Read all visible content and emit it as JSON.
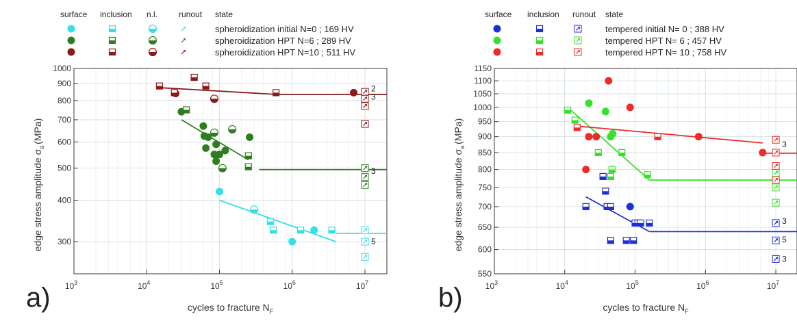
{
  "chart_data": [
    {
      "type": "scatter",
      "panel_label": "a)",
      "xlabel": "cycles to fracture N",
      "xlabel_sub": "F",
      "ylabel": "edge stress amplitude σ",
      "ylabel_sub": "a",
      "ylabel_unit": "(MPa)",
      "xscale": "log",
      "yscale": "log",
      "xlim": [
        1000,
        20000000
      ],
      "ylim": [
        240,
        1000
      ],
      "grid": true,
      "x_ticks": [
        {
          "value": 1000,
          "base": "10",
          "exp": "3"
        },
        {
          "value": 10000,
          "base": "10",
          "exp": "4"
        },
        {
          "value": 100000,
          "base": "10",
          "exp": "5"
        },
        {
          "value": 1000000,
          "base": "10",
          "exp": "6"
        },
        {
          "value": 10000000,
          "base": "10",
          "exp": "7"
        }
      ],
      "y_ticks": [
        {
          "value": 300,
          "label": "300"
        },
        {
          "value": 400,
          "label": "400"
        },
        {
          "value": 500,
          "label": "500"
        },
        {
          "value": 600,
          "label": "600"
        },
        {
          "value": 700,
          "label": "700"
        },
        {
          "value": 800,
          "label": "800"
        },
        {
          "value": 900,
          "label": "900"
        },
        {
          "value": 1000,
          "label": "1000"
        }
      ],
      "legend": {
        "headers": [
          "surface",
          "inclusion",
          "n.l.",
          "runout",
          "state"
        ],
        "entries": [
          {
            "color": "#33e0e6",
            "text": "spheroidization initial N=0     ; 169 HV",
            "nl": true
          },
          {
            "color": "#2e7d1f",
            "text": "spheroidization HPT  N=6      ; 289 HV",
            "nl": true
          },
          {
            "color": "#8b1a1a",
            "text": "spheroidization HPT  N=10 ; 511 HV",
            "nl": true
          }
        ]
      },
      "series": [
        {
          "color": "#33e0e6",
          "surface": [
            [
              100000,
              425
            ],
            [
              1000000,
              300
            ],
            [
              2000000,
              325
            ]
          ],
          "inclusion": [
            [
              500000,
              345
            ],
            [
              550000,
              325
            ],
            [
              1300000,
              325
            ],
            [
              3500000,
              325
            ]
          ],
          "nl": [
            [
              300000,
              375
            ]
          ],
          "runout": [
            [
              10000000,
              325
            ],
            [
              10000000,
              300
            ],
            [
              10000000,
              270
            ]
          ],
          "fit": [
            [
              100000,
              400
            ],
            [
              4000000,
              300
            ]
          ],
          "fit_runout": [
            [
              4000000,
              318
            ],
            [
              20000000,
              318
            ]
          ]
        },
        {
          "color": "#2e7d1f",
          "surface": [
            [
              30000,
              740
            ],
            [
              60000,
              670
            ],
            [
              62000,
              625
            ],
            [
              70000,
              620
            ],
            [
              65000,
              575
            ],
            [
              90000,
              590
            ],
            [
              85000,
              550
            ],
            [
              100000,
              550
            ],
            [
              120000,
              565
            ],
            [
              90000,
              525
            ],
            [
              260000,
              620
            ]
          ],
          "inclusion": [
            [
              35000,
              750
            ],
            [
              250000,
              545
            ],
            [
              250000,
              505
            ]
          ],
          "nl": [
            [
              85000,
              640
            ],
            [
              150000,
              655
            ],
            [
              110000,
              500
            ]
          ],
          "runout": [
            [
              10000000,
              500
            ],
            [
              10000000,
              470
            ],
            [
              10000000,
              445
            ]
          ],
          "fit": [
            [
              30000,
              700
            ],
            [
              250000,
              530
            ]
          ],
          "fit_runout": [
            [
              350000,
              495
            ],
            [
              20000000,
              495
            ]
          ]
        },
        {
          "color": "#8b1a1a",
          "surface": [
            [
              25000,
              840
            ],
            [
              7000000,
              845
            ]
          ],
          "inclusion": [
            [
              15000,
              885
            ],
            [
              24000,
              845
            ],
            [
              45000,
              940
            ],
            [
              65000,
              885
            ],
            [
              600000,
              845
            ]
          ],
          "nl": [
            [
              85000,
              810
            ]
          ],
          "runout": [
            [
              10000000,
              850
            ],
            [
              10000000,
              810
            ],
            [
              10000000,
              770
            ],
            [
              10000000,
              680
            ]
          ],
          "fit": [
            [
              15000,
              875
            ],
            [
              600000,
              835
            ]
          ],
          "fit_runout": [
            [
              600000,
              835
            ],
            [
              20000000,
              835
            ]
          ]
        }
      ],
      "count_labels": [
        {
          "x": 10000000,
          "y": 870,
          "label": "2"
        },
        {
          "x": 10000000,
          "y": 820,
          "label": "3"
        },
        {
          "x": 10000000,
          "y": 490,
          "label": "3"
        },
        {
          "x": 10000000,
          "y": 300,
          "label": "5"
        }
      ]
    },
    {
      "type": "scatter",
      "panel_label": "b)",
      "xlabel": "cycles to fracture N",
      "xlabel_sub": "F",
      "ylabel": "edge stress amplitude σ",
      "ylabel_sub": "a",
      "ylabel_unit": "(MPa)",
      "xscale": "log",
      "yscale": "log",
      "xlim": [
        1000,
        20000000
      ],
      "ylim": [
        550,
        1150
      ],
      "grid": true,
      "x_ticks": [
        {
          "value": 1000,
          "base": "10",
          "exp": "3"
        },
        {
          "value": 10000,
          "base": "10",
          "exp": "4"
        },
        {
          "value": 100000,
          "base": "10",
          "exp": "5"
        },
        {
          "value": 1000000,
          "base": "10",
          "exp": "6"
        },
        {
          "value": 10000000,
          "base": "10",
          "exp": "7"
        }
      ],
      "y_ticks": [
        {
          "value": 550,
          "label": "550"
        },
        {
          "value": 600,
          "label": "600"
        },
        {
          "value": 650,
          "label": "650"
        },
        {
          "value": 700,
          "label": "700"
        },
        {
          "value": 750,
          "label": "750"
        },
        {
          "value": 800,
          "label": "800"
        },
        {
          "value": 850,
          "label": "850"
        },
        {
          "value": 900,
          "label": "900"
        },
        {
          "value": 950,
          "label": "950"
        },
        {
          "value": 1000,
          "label": "1000"
        },
        {
          "value": 1050,
          "label": "1050"
        },
        {
          "value": 1100,
          "label": "1100"
        },
        {
          "value": 1150,
          "label": "1150"
        }
      ],
      "legend": {
        "headers": [
          "surface",
          "inclusion",
          "runout",
          "state"
        ],
        "entries": [
          {
            "color": "#1f2fd6",
            "text": "tempered initial N= 0    ; 388 HV",
            "nl": false
          },
          {
            "color": "#37e02a",
            "text": "tempered HPT  N= 6    ; 457 HV",
            "nl": false
          },
          {
            "color": "#f02a2a",
            "text": "tempered HPT  N= 10 ; 758 HV",
            "nl": false
          }
        ]
      },
      "series": [
        {
          "color": "#1f2fd6",
          "surface": [
            [
              85000,
              700
            ]
          ],
          "inclusion": [
            [
              20000,
              700
            ],
            [
              35000,
              780
            ],
            [
              38000,
              740
            ],
            [
              40000,
              700
            ],
            [
              45000,
              700
            ],
            [
              45000,
              620
            ],
            [
              75000,
              620
            ],
            [
              95000,
              620
            ],
            [
              100000,
              660
            ],
            [
              110000,
              660
            ],
            [
              120000,
              660
            ],
            [
              160000,
              660
            ]
          ],
          "nl": [],
          "runout": [
            [
              10000000,
              660
            ],
            [
              10000000,
              620
            ],
            [
              10000000,
              580
            ]
          ],
          "fit": [
            [
              20000,
              725
            ],
            [
              160000,
              640
            ]
          ],
          "fit_runout": [
            [
              160000,
              640
            ],
            [
              20000000,
              640
            ]
          ]
        },
        {
          "color": "#37e02a",
          "surface": [
            [
              22000,
              1015
            ],
            [
              38000,
              985
            ],
            [
              45000,
              900
            ],
            [
              48000,
              910
            ]
          ],
          "inclusion": [
            [
              11000,
              990
            ],
            [
              14000,
              955
            ],
            [
              30000,
              850
            ],
            [
              45000,
              780
            ],
            [
              47000,
              800
            ],
            [
              65000,
              850
            ],
            [
              150000,
              785
            ]
          ],
          "nl": [],
          "runout": [
            [
              10000000,
              790
            ],
            [
              10000000,
              770
            ],
            [
              10000000,
              750
            ],
            [
              10000000,
              710
            ]
          ],
          "fit": [
            [
              11000,
              1000
            ],
            [
              160000,
              770
            ]
          ],
          "fit_runout": [
            [
              160000,
              770
            ],
            [
              20000000,
              770
            ]
          ]
        },
        {
          "color": "#f02a2a",
          "surface": [
            [
              20000,
              800
            ],
            [
              22000,
              900
            ],
            [
              28000,
              900
            ],
            [
              42000,
              1100
            ],
            [
              85000,
              1000
            ],
            [
              800000,
              900
            ],
            [
              6500000,
              850
            ]
          ],
          "inclusion": [
            [
              15000,
              930
            ],
            [
              210000,
              900
            ]
          ],
          "nl": [],
          "runout": [
            [
              10000000,
              890
            ],
            [
              10000000,
              850
            ],
            [
              10000000,
              810
            ],
            [
              10000000,
              770
            ]
          ],
          "fit": [
            [
              15000,
              935
            ],
            [
              6500000,
              880
            ]
          ],
          "fit_runout": [
            [
              6500000,
              848
            ],
            [
              20000000,
              848
            ]
          ]
        }
      ],
      "count_labels": [
        {
          "x": 10000000,
          "y": 875,
          "label": "3"
        },
        {
          "x": 10000000,
          "y": 665,
          "label": "3"
        },
        {
          "x": 10000000,
          "y": 622,
          "label": "5"
        },
        {
          "x": 10000000,
          "y": 580,
          "label": "3"
        }
      ]
    }
  ]
}
